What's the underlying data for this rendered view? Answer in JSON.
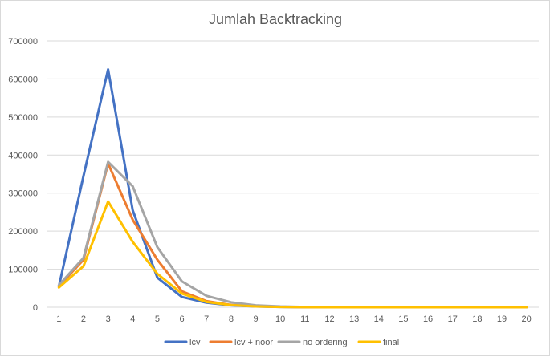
{
  "chart_data": {
    "type": "line",
    "title": "Jumlah Backtracking",
    "xlabel": "",
    "ylabel": "",
    "x": [
      1,
      2,
      3,
      4,
      5,
      6,
      7,
      8,
      9,
      10,
      11,
      12,
      13,
      14,
      15,
      16,
      17,
      18,
      19,
      20
    ],
    "ylim": [
      0,
      700000
    ],
    "yticks": [
      0,
      100000,
      200000,
      300000,
      400000,
      500000,
      600000,
      700000
    ],
    "grid": true,
    "legend_position": "bottom",
    "series": [
      {
        "name": "lcv",
        "color": "#4472c4",
        "values": [
          55000,
          345000,
          625000,
          255000,
          78000,
          27000,
          12000,
          5000,
          2000,
          800,
          300,
          100,
          0,
          0,
          0,
          0,
          0,
          0,
          0,
          0
        ]
      },
      {
        "name": "lcv + noor",
        "color": "#ed7d31",
        "values": [
          55000,
          125000,
          378000,
          230000,
          125000,
          42000,
          16000,
          6000,
          2500,
          1000,
          400,
          100,
          0,
          0,
          0,
          0,
          0,
          0,
          0,
          0
        ]
      },
      {
        "name": "no ordering",
        "color": "#a5a5a5",
        "values": [
          58000,
          130000,
          382000,
          318000,
          158000,
          68000,
          30000,
          13000,
          5000,
          2000,
          700,
          200,
          0,
          0,
          0,
          0,
          0,
          0,
          0,
          0
        ]
      },
      {
        "name": "final",
        "color": "#ffc000",
        "values": [
          52000,
          108000,
          278000,
          172000,
          88000,
          36000,
          14000,
          5500,
          2000,
          800,
          300,
          100,
          0,
          0,
          0,
          0,
          0,
          0,
          0,
          0
        ]
      }
    ]
  }
}
